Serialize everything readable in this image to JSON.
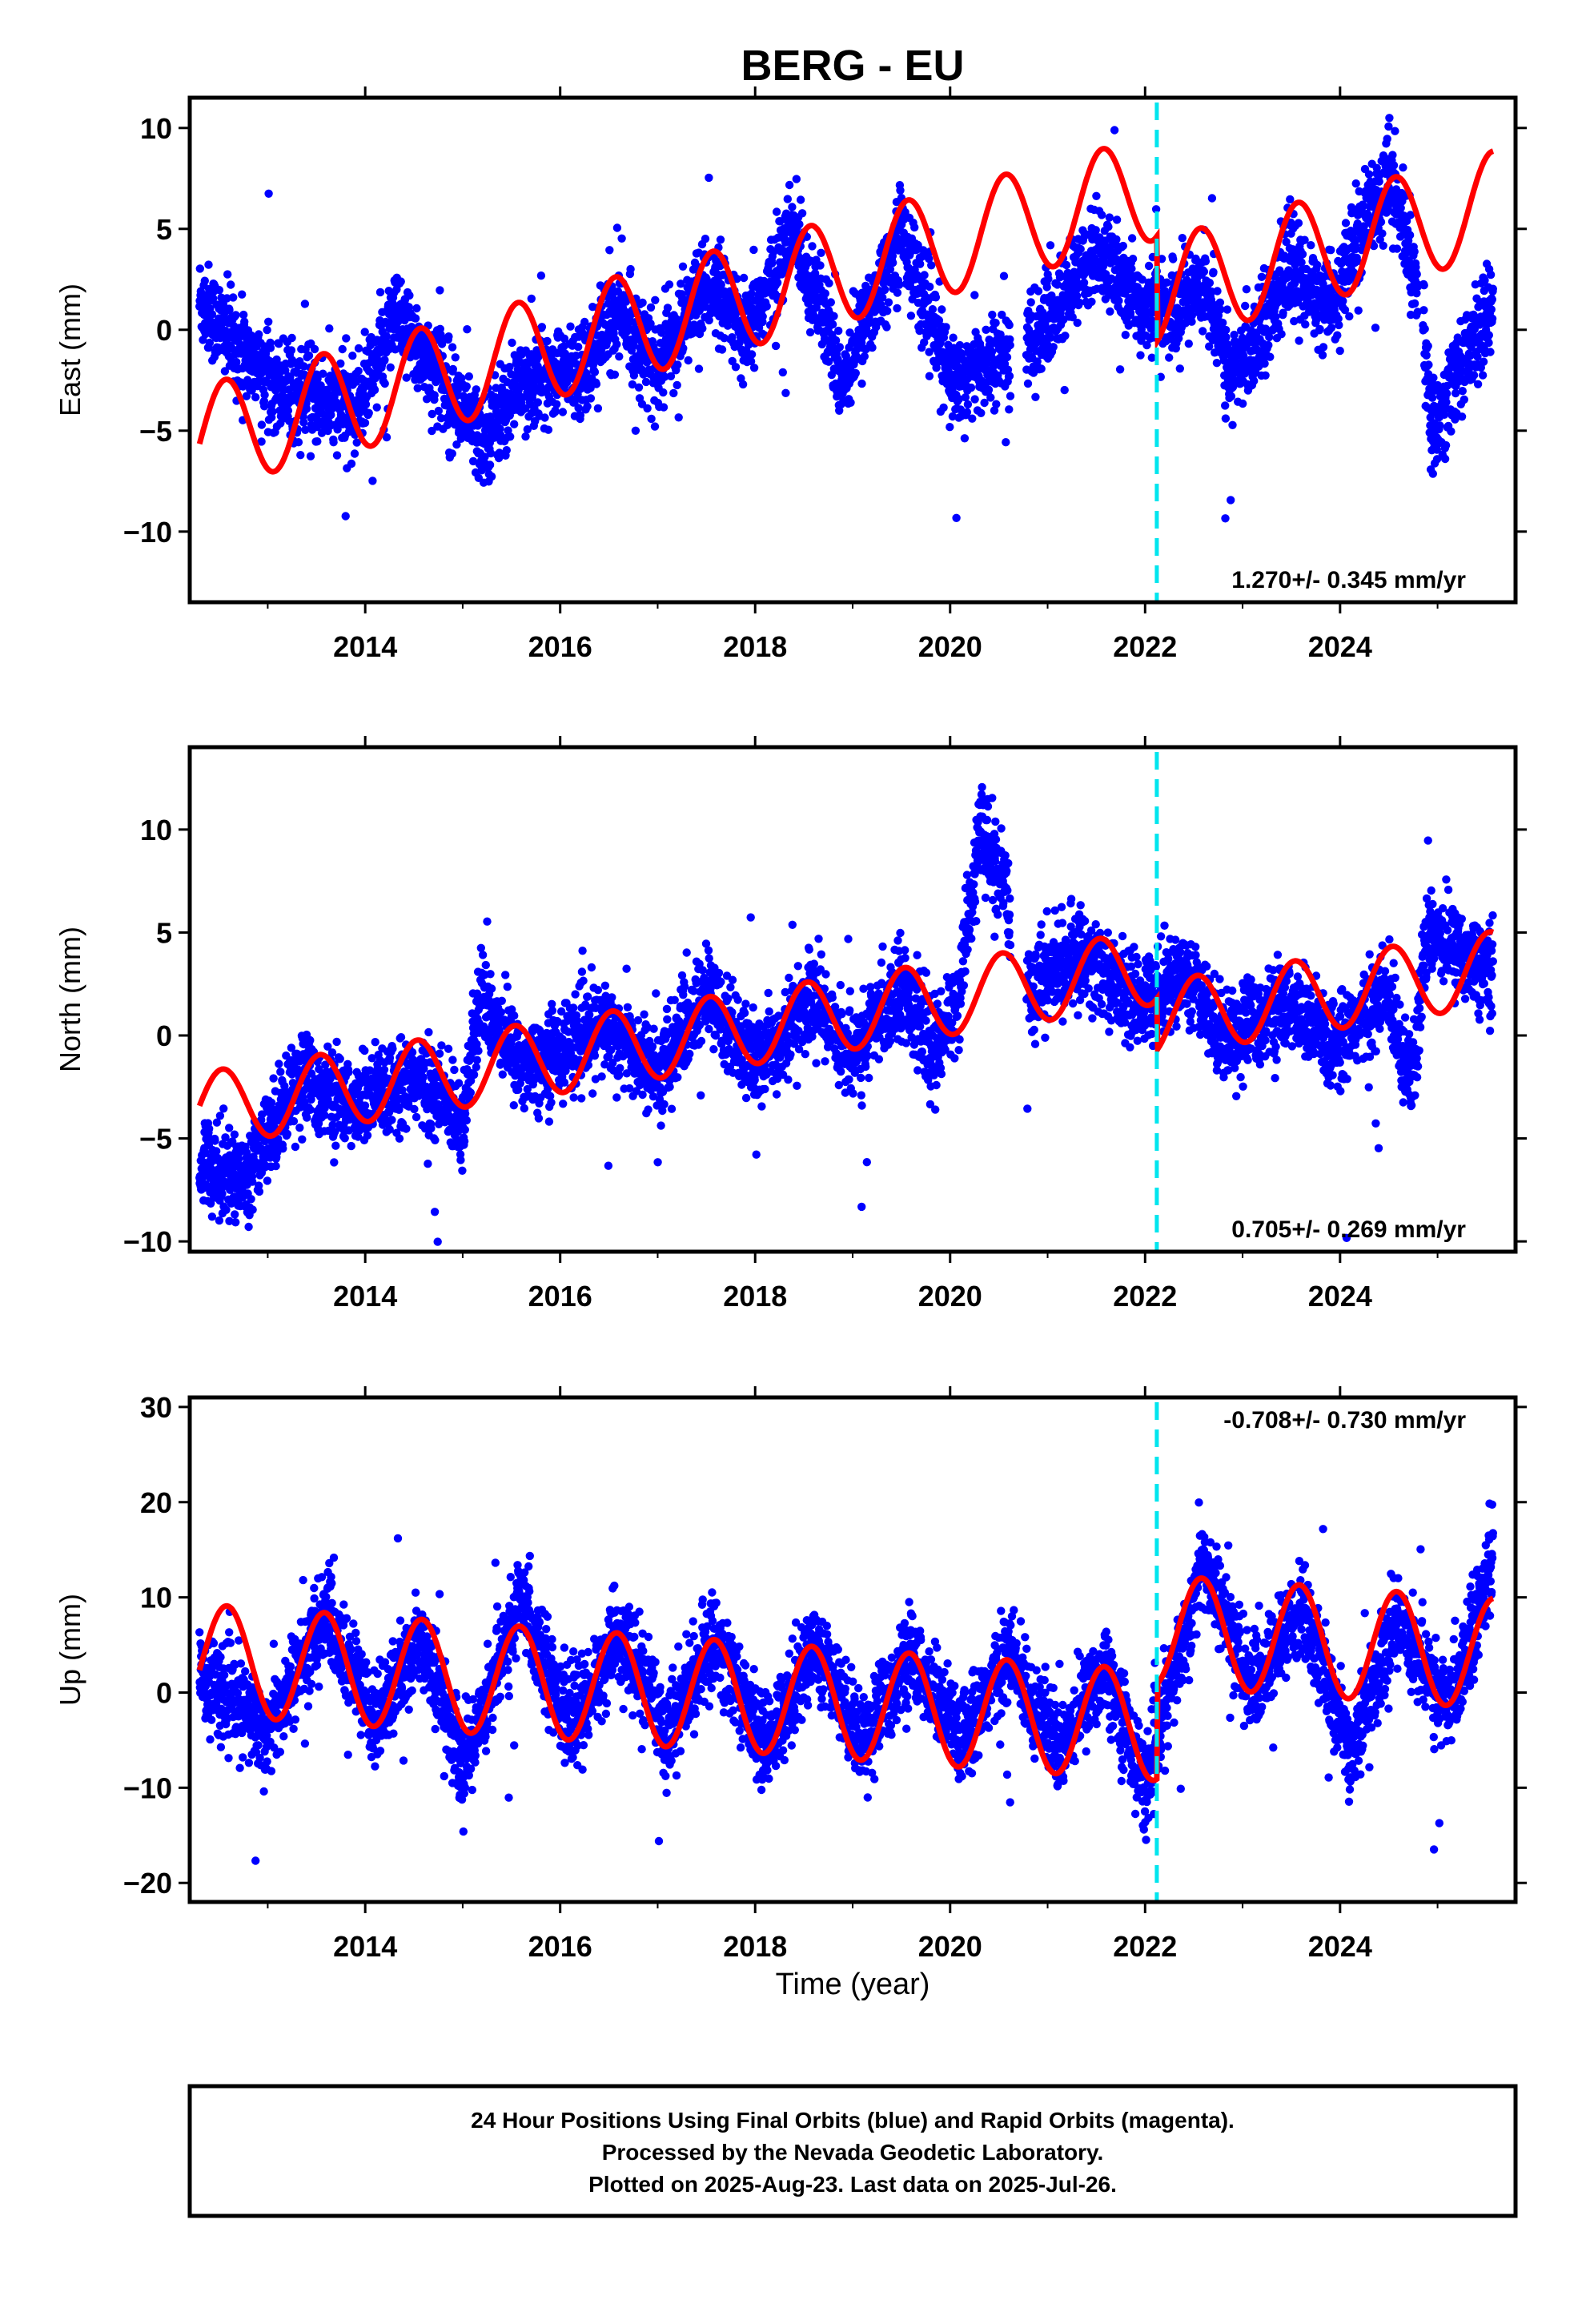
{
  "title": "BERG - EU",
  "xlabel": "Time (year)",
  "footer": {
    "line1": "24 Hour Positions Using Final Orbits (blue) and Rapid Orbits (magenta).",
    "line2": "Processed by the Nevada Geodetic Laboratory.",
    "line3": "Plotted on 2025-Aug-23. Last data on 2025-Jul-26."
  },
  "colors": {
    "points": "#0000ff",
    "model": "#ff0000",
    "event_line": "#00e5ee",
    "frame": "#000000"
  },
  "chart_data": [
    {
      "type": "scatter",
      "ylabel": "East (mm)",
      "xlim": [
        2012.2,
        2025.8
      ],
      "ylim": [
        -13.5,
        11.5
      ],
      "xticks": [
        "2014",
        "2016",
        "2018",
        "2020",
        "2022",
        "2024"
      ],
      "yticks": [
        "−10",
        "−5",
        "0",
        "5",
        "10"
      ],
      "ytick_values": [
        -10,
        -5,
        0,
        5,
        10
      ],
      "event_line_x": 2022.12,
      "rate_label": "1.270+/- 0.345 mm/yr",
      "rate_position": "bottom-right",
      "data_start": 2012.3,
      "data_end": 2025.57,
      "gaps": [
        [
          2020.62,
          2020.78
        ],
        [
          2024.8,
          2024.85
        ]
      ],
      "observed_trend": [
        {
          "x": 2012.3,
          "y": 1.5
        },
        {
          "x": 2012.8,
          "y": -1.5
        },
        {
          "x": 2013.3,
          "y": -3.2
        },
        {
          "x": 2013.9,
          "y": -4.0
        },
        {
          "x": 2014.3,
          "y": 0.5
        },
        {
          "x": 2014.8,
          "y": -2.5
        },
        {
          "x": 2015.2,
          "y": -5.5
        },
        {
          "x": 2015.6,
          "y": -2.5
        },
        {
          "x": 2016.2,
          "y": -2.0
        },
        {
          "x": 2016.6,
          "y": 1.0
        },
        {
          "x": 2017.0,
          "y": -2.0
        },
        {
          "x": 2017.5,
          "y": 2.5
        },
        {
          "x": 2017.9,
          "y": -0.5
        },
        {
          "x": 2018.4,
          "y": 5.0
        },
        {
          "x": 2018.9,
          "y": -2.5
        },
        {
          "x": 2019.5,
          "y": 5.0
        },
        {
          "x": 2020.0,
          "y": -2.5
        },
        {
          "x": 2020.5,
          "y": -1.5
        },
        {
          "x": 2020.9,
          "y": -0.5
        },
        {
          "x": 2021.5,
          "y": 4.0
        },
        {
          "x": 2021.9,
          "y": 1.5
        },
        {
          "x": 2022.3,
          "y": 1.0
        },
        {
          "x": 2022.6,
          "y": 2.5
        },
        {
          "x": 2022.9,
          "y": -2.5
        },
        {
          "x": 2023.5,
          "y": 3.0
        },
        {
          "x": 2023.9,
          "y": 1.0
        },
        {
          "x": 2024.5,
          "y": 8.0
        },
        {
          "x": 2024.8,
          "y": 2.0
        },
        {
          "x": 2024.95,
          "y": -5.0
        },
        {
          "x": 2025.2,
          "y": -2.0
        },
        {
          "x": 2025.57,
          "y": 1.0
        }
      ],
      "model": {
        "start": 2012.3,
        "end": 2025.57,
        "rate": 1.27,
        "offset_at_start": -5.4,
        "annual_amp": 2.6,
        "annual_phase": 4.3,
        "step_at_event": -5.2
      }
    },
    {
      "type": "scatter",
      "ylabel": "North (mm)",
      "xlim": [
        2012.2,
        2025.8
      ],
      "ylim": [
        -10.5,
        14.0
      ],
      "xticks": [
        "2014",
        "2016",
        "2018",
        "2020",
        "2022",
        "2024"
      ],
      "yticks": [
        "−10",
        "−5",
        "0",
        "5",
        "10"
      ],
      "ytick_values": [
        -10,
        -5,
        0,
        5,
        10
      ],
      "event_line_x": 2022.12,
      "rate_label": "0.705+/- 0.269 mm/yr",
      "rate_position": "bottom-right",
      "data_start": 2012.3,
      "data_end": 2025.57,
      "gaps": [
        [
          2020.62,
          2020.78
        ]
      ],
      "observed_trend": [
        {
          "x": 2012.3,
          "y": -6.0
        },
        {
          "x": 2012.8,
          "y": -7.0
        },
        {
          "x": 2013.3,
          "y": -2.0
        },
        {
          "x": 2013.9,
          "y": -3.5
        },
        {
          "x": 2014.5,
          "y": -2.0
        },
        {
          "x": 2015.0,
          "y": -4.0
        },
        {
          "x": 2015.2,
          "y": 2.0
        },
        {
          "x": 2015.6,
          "y": -1.5
        },
        {
          "x": 2016.5,
          "y": 0.5
        },
        {
          "x": 2017.0,
          "y": -2.0
        },
        {
          "x": 2017.5,
          "y": 2.0
        },
        {
          "x": 2018.0,
          "y": -1.5
        },
        {
          "x": 2018.6,
          "y": 2.0
        },
        {
          "x": 2019.0,
          "y": -1.0
        },
        {
          "x": 2019.5,
          "y": 2.5
        },
        {
          "x": 2019.8,
          "y": -1.0
        },
        {
          "x": 2020.1,
          "y": 2.0
        },
        {
          "x": 2020.3,
          "y": 10.0
        },
        {
          "x": 2020.55,
          "y": 7.0
        },
        {
          "x": 2020.8,
          "y": 2.5
        },
        {
          "x": 2021.4,
          "y": 4.0
        },
        {
          "x": 2021.9,
          "y": 1.5
        },
        {
          "x": 2022.4,
          "y": 3.0
        },
        {
          "x": 2022.8,
          "y": 0.0
        },
        {
          "x": 2023.5,
          "y": 1.5
        },
        {
          "x": 2023.9,
          "y": -0.5
        },
        {
          "x": 2024.5,
          "y": 2.0
        },
        {
          "x": 2024.75,
          "y": -2.5
        },
        {
          "x": 2024.9,
          "y": 5.5
        },
        {
          "x": 2025.2,
          "y": 4.0
        },
        {
          "x": 2025.57,
          "y": 3.5
        }
      ],
      "model": {
        "start": 2012.3,
        "end": 2025.57,
        "rate": 0.705,
        "offset_at_start": -3.6,
        "annual_amp": 1.8,
        "annual_phase": 4.5,
        "step_at_event": -2.5
      }
    },
    {
      "type": "scatter",
      "ylabel": "Up (mm)",
      "xlim": [
        2012.2,
        2025.8
      ],
      "ylim": [
        -22.0,
        31.0
      ],
      "xticks": [
        "2014",
        "2016",
        "2018",
        "2020",
        "2022",
        "2024"
      ],
      "yticks": [
        "−20",
        "−10",
        "0",
        "10",
        "20",
        "30"
      ],
      "ytick_values": [
        -20,
        -10,
        0,
        10,
        20,
        30
      ],
      "event_line_x": 2022.12,
      "rate_label": "-0.708+/- 0.730 mm/yr",
      "rate_position": "top-right",
      "data_start": 2012.3,
      "data_end": 2025.57,
      "gaps": [],
      "observed_trend": [
        {
          "x": 2012.3,
          "y": 2.0
        },
        {
          "x": 2013.0,
          "y": -4.0
        },
        {
          "x": 2013.6,
          "y": 8.0
        },
        {
          "x": 2014.1,
          "y": -3.0
        },
        {
          "x": 2014.6,
          "y": 6.0
        },
        {
          "x": 2015.0,
          "y": -8.0
        },
        {
          "x": 2015.6,
          "y": 10.0
        },
        {
          "x": 2016.1,
          "y": -4.0
        },
        {
          "x": 2016.6,
          "y": 6.0
        },
        {
          "x": 2017.1,
          "y": -4.0
        },
        {
          "x": 2017.6,
          "y": 6.0
        },
        {
          "x": 2018.1,
          "y": -6.0
        },
        {
          "x": 2018.6,
          "y": 5.0
        },
        {
          "x": 2019.1,
          "y": -5.0
        },
        {
          "x": 2019.6,
          "y": 4.0
        },
        {
          "x": 2020.1,
          "y": -5.0
        },
        {
          "x": 2020.6,
          "y": 4.0
        },
        {
          "x": 2021.1,
          "y": -6.0
        },
        {
          "x": 2021.6,
          "y": 3.0
        },
        {
          "x": 2022.0,
          "y": -10.0
        },
        {
          "x": 2022.6,
          "y": 14.0
        },
        {
          "x": 2023.1,
          "y": 0.0
        },
        {
          "x": 2023.6,
          "y": 9.0
        },
        {
          "x": 2024.1,
          "y": -6.0
        },
        {
          "x": 2024.6,
          "y": 8.0
        },
        {
          "x": 2025.1,
          "y": -2.0
        },
        {
          "x": 2025.57,
          "y": 14.0
        }
      ],
      "model": {
        "start": 2012.3,
        "end": 2025.57,
        "rate": -0.708,
        "offset_at_start": 3.5,
        "annual_amp": 5.8,
        "annual_phase": 4.2,
        "step_at_event": 10.0
      }
    }
  ]
}
